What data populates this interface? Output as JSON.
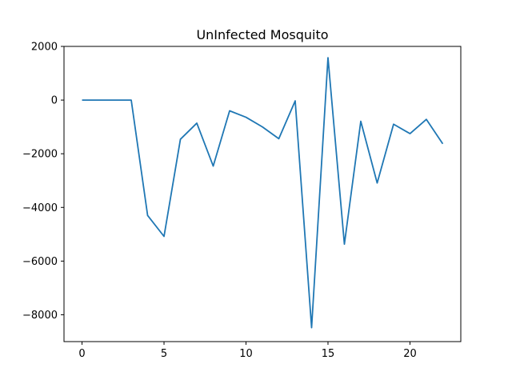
{
  "chart_data": {
    "type": "line",
    "title": "UnInfected Mosquito",
    "xlabel": "",
    "ylabel": "",
    "xlim": [
      -1.1,
      23.1
    ],
    "ylim": [
      -9000,
      2000
    ],
    "xticks": [
      0,
      5,
      10,
      15,
      20
    ],
    "yticks": [
      2000,
      0,
      -2000,
      -4000,
      -6000,
      -8000
    ],
    "ytick_labels": [
      "2000",
      "0",
      "−2000",
      "−4000",
      "−6000",
      "−8000"
    ],
    "grid": false,
    "series": [
      {
        "color": "#1f77b4",
        "x": [
          0,
          1,
          2,
          3,
          4,
          5,
          6,
          7,
          8,
          9,
          10,
          11,
          12,
          13,
          14,
          15,
          16,
          17,
          18,
          19,
          20,
          21,
          22
        ],
        "y": [
          0,
          0,
          0,
          0,
          -4300,
          -5080,
          -1460,
          -860,
          -2460,
          -400,
          -640,
          -1000,
          -1440,
          -30,
          -8480,
          1580,
          -5370,
          -790,
          -3090,
          -900,
          -1250,
          -720,
          -1630
        ]
      }
    ]
  }
}
